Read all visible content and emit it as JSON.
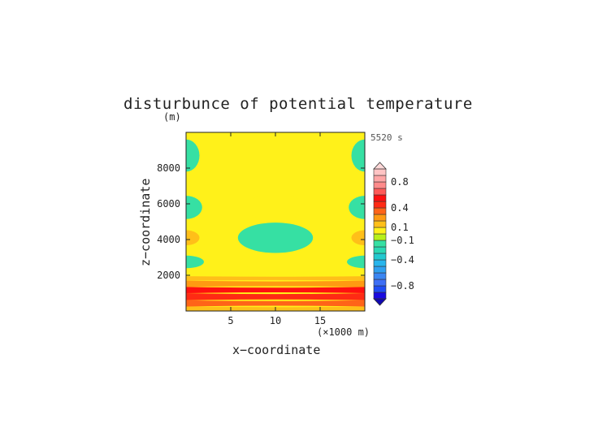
{
  "chart_data": {
    "type": "heatmap",
    "title": "disturbunce of potential temperature",
    "y_unit": "(m)",
    "time_label": "5520 s",
    "xlabel": "x−coordinate",
    "ylabel": "z−coordinate",
    "x_unit": "(×1000 m)",
    "xlim": [
      0,
      20
    ],
    "ylim": [
      0,
      10000
    ],
    "x_ticks": [
      {
        "value": 5,
        "label": "5"
      },
      {
        "value": 10,
        "label": "10"
      },
      {
        "value": 15,
        "label": "15"
      }
    ],
    "y_ticks": [
      {
        "value": 2000,
        "label": "2000"
      },
      {
        "value": 4000,
        "label": "4000"
      },
      {
        "value": 6000,
        "label": "6000"
      },
      {
        "value": 8000,
        "label": "8000"
      }
    ],
    "background_level": 0,
    "bands": [
      {
        "z0": 0,
        "z1": 250,
        "value": 0.15
      },
      {
        "z0": 250,
        "z1": 600,
        "value": 0.3
      },
      {
        "z0": 600,
        "z1": 1000,
        "value": 0.45
      },
      {
        "z0": 1000,
        "z1": 1350,
        "value": 0.55
      },
      {
        "z0": 1350,
        "z1": 1700,
        "value": 0.25
      },
      {
        "z0": 1700,
        "z1": 1950,
        "value": 0.15
      },
      {
        "z0": 1950,
        "z1": 2150,
        "value": 0.05
      }
    ],
    "features": [
      {
        "cx": 0.0,
        "cz": 8700,
        "rx": 1.5,
        "rz": 900,
        "value": -0.2
      },
      {
        "cx": 20.0,
        "cz": 8700,
        "rx": 1.5,
        "rz": 900,
        "value": -0.2
      },
      {
        "cx": 10.0,
        "cz": 5800,
        "rx": 3.3,
        "rz": 750,
        "value": 0.05
      },
      {
        "cx": 0.0,
        "cz": 5800,
        "rx": 1.8,
        "rz": 650,
        "value": -0.2
      },
      {
        "cx": 20.0,
        "cz": 5800,
        "rx": 1.8,
        "rz": 650,
        "value": -0.2
      },
      {
        "cx": 10.0,
        "cz": 4100,
        "rx": 4.2,
        "rz": 850,
        "value": -0.2
      },
      {
        "cx": 0.0,
        "cz": 4100,
        "rx": 2.4,
        "rz": 750,
        "value": 0.05
      },
      {
        "cx": 0.0,
        "cz": 4100,
        "rx": 1.5,
        "rz": 420,
        "value": 0.15
      },
      {
        "cx": 20.0,
        "cz": 4100,
        "rx": 2.4,
        "rz": 750,
        "value": 0.05
      },
      {
        "cx": 20.0,
        "cz": 4100,
        "rx": 1.5,
        "rz": 420,
        "value": 0.15
      },
      {
        "cx": 10.0,
        "cz": 2750,
        "rx": 4.0,
        "rz": 450,
        "value": 0.05
      },
      {
        "cx": 0.0,
        "cz": 2750,
        "rx": 2.0,
        "rz": 350,
        "value": -0.2
      },
      {
        "cx": 20.0,
        "cz": 2750,
        "rx": 2.0,
        "rz": 350,
        "value": -0.2
      }
    ],
    "colorbar": {
      "levels": [
        {
          "lo": -1.0,
          "hi": -0.9,
          "color": "#1a0ae0"
        },
        {
          "lo": -0.9,
          "hi": -0.8,
          "color": "#1f4df5"
        },
        {
          "lo": -0.8,
          "hi": -0.7,
          "color": "#3e6ff5"
        },
        {
          "lo": -0.7,
          "hi": -0.6,
          "color": "#3a86f2"
        },
        {
          "lo": -0.6,
          "hi": -0.5,
          "color": "#2ea0f0"
        },
        {
          "lo": -0.5,
          "hi": -0.4,
          "color": "#27b5ec"
        },
        {
          "lo": -0.4,
          "hi": -0.3,
          "color": "#22c9cf"
        },
        {
          "lo": -0.3,
          "hi": -0.2,
          "color": "#2ad8b4"
        },
        {
          "lo": -0.2,
          "hi": -0.1,
          "color": "#36e0a3"
        },
        {
          "lo": -0.1,
          "hi": 0.0,
          "color": "#b7f01a"
        },
        {
          "lo": 0.0,
          "hi": 0.1,
          "color": "#fff11a"
        },
        {
          "lo": 0.1,
          "hi": 0.2,
          "color": "#ffbf19"
        },
        {
          "lo": 0.2,
          "hi": 0.3,
          "color": "#ff9a12"
        },
        {
          "lo": 0.3,
          "hi": 0.4,
          "color": "#ff6418"
        },
        {
          "lo": 0.4,
          "hi": 0.5,
          "color": "#ff2a14"
        },
        {
          "lo": 0.5,
          "hi": 0.6,
          "color": "#ff1010"
        },
        {
          "lo": 0.6,
          "hi": 0.7,
          "color": "#ff5a58"
        },
        {
          "lo": 0.7,
          "hi": 0.8,
          "color": "#ff8a8a"
        },
        {
          "lo": 0.8,
          "hi": 0.9,
          "color": "#ffa6a6"
        },
        {
          "lo": 0.9,
          "hi": 1.0,
          "color": "#ffc4c4"
        }
      ],
      "range": [
        -1.0,
        1.0
      ],
      "labels": [
        {
          "value": 0.8,
          "label": "0.8"
        },
        {
          "value": 0.4,
          "label": "0.4"
        },
        {
          "value": 0.1,
          "label": "0.1"
        },
        {
          "value": -0.1,
          "label": "−0.1"
        },
        {
          "value": -0.4,
          "label": "−0.4"
        },
        {
          "value": -0.8,
          "label": "−0.8"
        }
      ],
      "extend": "both"
    }
  }
}
